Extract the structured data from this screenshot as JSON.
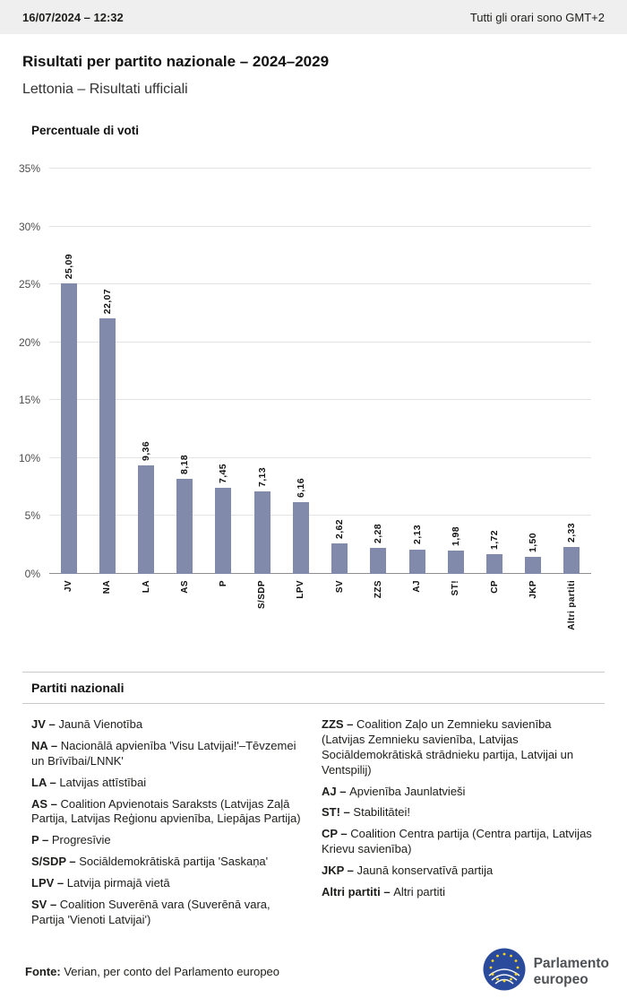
{
  "topbar": {
    "datetime": "16/07/2024 – 12:32",
    "timezone_note": "Tutti gli orari sono GMT+2"
  },
  "header": {
    "title": "Risultati per partito nazionale – 2024–2029",
    "subtitle": "Lettonia – Risultati ufficiali"
  },
  "chart_data": {
    "type": "bar",
    "title": "Percentuale di voti",
    "categories": [
      "JV",
      "NA",
      "LA",
      "AS",
      "P",
      "S/SDP",
      "LPV",
      "SV",
      "ZZS",
      "AJ",
      "ST!",
      "CP",
      "JKP",
      "Altri partiti"
    ],
    "values": [
      25.09,
      22.07,
      9.36,
      8.18,
      7.45,
      7.13,
      6.16,
      2.62,
      2.28,
      2.13,
      1.98,
      1.72,
      1.5,
      2.33
    ],
    "value_labels": [
      "25,09",
      "22,07",
      "9,36",
      "8,18",
      "7,45",
      "7,13",
      "6,16",
      "2,62",
      "2,28",
      "2,13",
      "1,98",
      "1,72",
      "1,50",
      "2,33"
    ],
    "xlabel": "",
    "ylabel": "",
    "ylim": [
      0,
      35
    ],
    "ytick_step": 5,
    "ytick_suffix": "%",
    "grid": true,
    "bar_color": "#828AAC",
    "legend_position": "none"
  },
  "parties": {
    "heading": "Partiti nazionali",
    "columns": [
      [
        {
          "abbr": "JV –",
          "name": "Jaunā Vienotība"
        },
        {
          "abbr": "NA –",
          "name": "Nacionālā apvienība 'Visu Latvijai!'–Tēvzemei un Brīvībai/LNNK'"
        },
        {
          "abbr": "LA –",
          "name": "Latvijas attīstībai"
        },
        {
          "abbr": "AS –",
          "name": "Coalition Apvienotais Saraksts (Latvijas Zaļā Partija, Latvijas Reģionu apvienība, Liepājas Partija)"
        },
        {
          "abbr": "P –",
          "name": "Progresīvie"
        },
        {
          "abbr": "S/SDP –",
          "name": "Sociāldemokrātiskā partija 'Saskaņa'"
        },
        {
          "abbr": "LPV –",
          "name": "Latvija pirmajā vietā"
        },
        {
          "abbr": "SV –",
          "name": "Coalition Suverēnā vara (Suverēnā vara, Partija 'Vienoti Latvijai')"
        }
      ],
      [
        {
          "abbr": "ZZS –",
          "name": "Coalition Zaļo un Zemnieku savienība (Latvijas Zemnieku savienība, Latvijas Sociāldemokrātiskā strādnieku partija, Latvijai un Ventspilij)"
        },
        {
          "abbr": "AJ –",
          "name": "Apvienība Jaunlatvieši"
        },
        {
          "abbr": "ST! –",
          "name": "Stabilitātei!"
        },
        {
          "abbr": "CP –",
          "name": "Coalition Centra partija (Centra partija, Latvijas Krievu savienība)"
        },
        {
          "abbr": "JKP –",
          "name": "Jaunā konservatīvā partija"
        },
        {
          "abbr": "Altri partiti –",
          "name": "Altri partiti"
        }
      ]
    ]
  },
  "footer": {
    "source_label": "Fonte:",
    "source_text": "Verian, per conto del Parlamento europeo",
    "logo": {
      "line1": "Parlamento",
      "line2": "europeo"
    }
  }
}
